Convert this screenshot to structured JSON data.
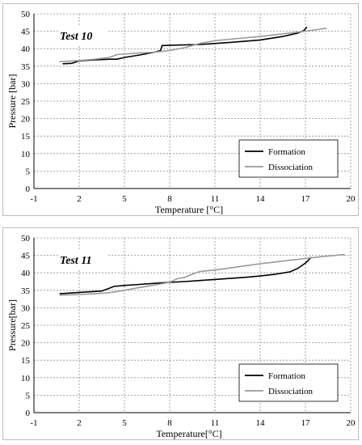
{
  "chart_data": [
    {
      "type": "line",
      "title": "Test 10",
      "xlabel": "Temperature [°C]",
      "ylabel": "Pressure [bar]",
      "xlim": [
        -1,
        20
      ],
      "ylim": [
        0,
        50
      ],
      "x_ticks": [
        "-1",
        "2",
        "5",
        "8",
        "11",
        "14",
        "17",
        "20"
      ],
      "y_ticks": [
        "0",
        "5",
        "10",
        "15",
        "20",
        "25",
        "30",
        "35",
        "40",
        "45",
        "50"
      ],
      "grid": true,
      "legend_position": "bottom-right",
      "series": [
        {
          "name": "Formation",
          "color": "#000000",
          "points": [
            [
              0.9,
              35.7
            ],
            [
              1.5,
              35.8
            ],
            [
              2.0,
              36.5
            ],
            [
              3.0,
              36.8
            ],
            [
              4.0,
              37.0
            ],
            [
              4.5,
              37.0
            ],
            [
              5.0,
              37.5
            ],
            [
              6.0,
              38.2
            ],
            [
              7.0,
              39.0
            ],
            [
              7.4,
              39.5
            ],
            [
              7.5,
              40.9
            ],
            [
              8.0,
              41.0
            ],
            [
              10.0,
              41.2
            ],
            [
              12.0,
              41.8
            ],
            [
              14.0,
              42.5
            ],
            [
              15.5,
              43.5
            ],
            [
              16.5,
              44.5
            ],
            [
              16.9,
              45.2
            ],
            [
              17.1,
              46.2
            ]
          ]
        },
        {
          "name": "Dissociation",
          "color": "#9a9a9a",
          "points": [
            [
              0.7,
              36.3
            ],
            [
              2.0,
              36.6
            ],
            [
              3.0,
              37.0
            ],
            [
              4.0,
              37.5
            ],
            [
              4.5,
              38.3
            ],
            [
              6.0,
              38.8
            ],
            [
              7.0,
              39.0
            ],
            [
              8.0,
              39.5
            ],
            [
              9.0,
              40.3
            ],
            [
              10.0,
              41.5
            ],
            [
              11.0,
              42.3
            ],
            [
              12.0,
              42.7
            ],
            [
              14.0,
              43.5
            ],
            [
              16.0,
              44.5
            ],
            [
              17.0,
              45.0
            ],
            [
              18.0,
              45.6
            ],
            [
              18.4,
              45.9
            ]
          ]
        }
      ]
    },
    {
      "type": "line",
      "title": "Test 11",
      "xlabel": "Temperature[°C]",
      "ylabel": "Pressure[bar]",
      "xlim": [
        -1,
        20
      ],
      "ylim": [
        0,
        50
      ],
      "x_ticks": [
        "-1",
        "2",
        "5",
        "8",
        "11",
        "14",
        "17",
        "20"
      ],
      "y_ticks": [
        "0",
        "5",
        "10",
        "15",
        "20",
        "25",
        "30",
        "35",
        "40",
        "45",
        "50"
      ],
      "grid": true,
      "legend_position": "bottom-right",
      "series": [
        {
          "name": "Formation",
          "color": "#000000",
          "points": [
            [
              0.7,
              34.0
            ],
            [
              2.0,
              34.4
            ],
            [
              3.5,
              34.8
            ],
            [
              4.0,
              35.6
            ],
            [
              4.3,
              36.1
            ],
            [
              5.0,
              36.4
            ],
            [
              6.0,
              36.7
            ],
            [
              7.0,
              37.0
            ],
            [
              8.0,
              37.3
            ],
            [
              9.0,
              37.5
            ],
            [
              10.0,
              37.8
            ],
            [
              11.0,
              38.1
            ],
            [
              12.0,
              38.4
            ],
            [
              13.0,
              38.7
            ],
            [
              14.0,
              39.1
            ],
            [
              15.0,
              39.6
            ],
            [
              16.0,
              40.3
            ],
            [
              16.5,
              41.3
            ],
            [
              17.0,
              42.8
            ],
            [
              17.4,
              44.5
            ]
          ]
        },
        {
          "name": "Dissociation",
          "color": "#9a9a9a",
          "points": [
            [
              0.7,
              33.6
            ],
            [
              2.0,
              33.8
            ],
            [
              3.0,
              34.0
            ],
            [
              4.0,
              34.3
            ],
            [
              5.0,
              35.0
            ],
            [
              6.0,
              35.8
            ],
            [
              7.0,
              36.5
            ],
            [
              8.0,
              37.3
            ],
            [
              8.5,
              38.3
            ],
            [
              9.0,
              38.7
            ],
            [
              9.5,
              39.6
            ],
            [
              10.0,
              40.4
            ],
            [
              11.0,
              40.8
            ],
            [
              12.0,
              41.4
            ],
            [
              13.0,
              42.0
            ],
            [
              14.0,
              42.6
            ],
            [
              15.0,
              43.1
            ],
            [
              16.0,
              43.6
            ],
            [
              17.0,
              44.1
            ],
            [
              18.0,
              44.6
            ],
            [
              19.0,
              45.0
            ],
            [
              19.6,
              45.2
            ]
          ]
        }
      ]
    }
  ]
}
